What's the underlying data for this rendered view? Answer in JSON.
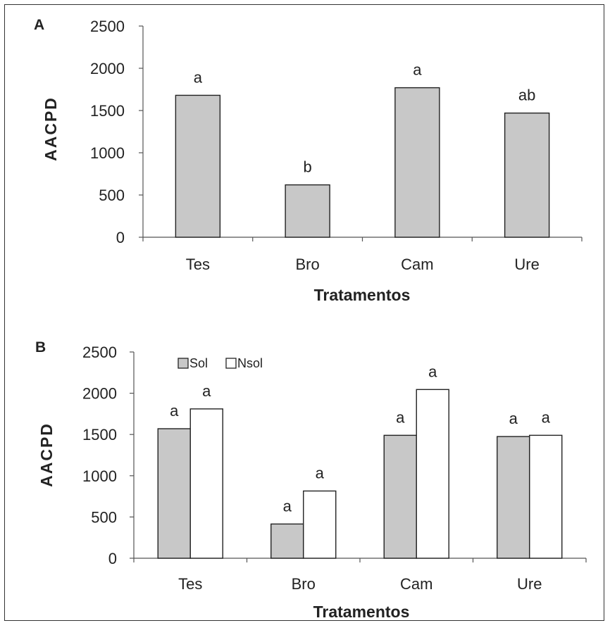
{
  "colors": {
    "sol": "#c8c8c8",
    "nsol": "#ffffff",
    "stroke": "#222222"
  },
  "chart_data": [
    {
      "type": "bar",
      "panel": "A",
      "xlabel": "Tratamentos",
      "ylabel": "AACPD",
      "ylim": [
        0,
        2500
      ],
      "yticks": [
        0,
        500,
        1000,
        1500,
        2000,
        2500
      ],
      "categories": [
        "Tes",
        "Bro",
        "Cam",
        "Ure"
      ],
      "series": [
        {
          "values": [
            1680,
            620,
            1770,
            1470
          ],
          "labels": [
            "a",
            "b",
            "a",
            "ab"
          ]
        }
      ],
      "grid": false
    },
    {
      "type": "bar",
      "panel": "B",
      "xlabel": "Tratamentos",
      "ylabel": "AACPD",
      "ylim": [
        0,
        2500
      ],
      "yticks": [
        0,
        500,
        1000,
        1500,
        2000,
        2500
      ],
      "categories": [
        "Tes",
        "Bro",
        "Cam",
        "Ure"
      ],
      "series": [
        {
          "name": "Sol",
          "values": [
            1570,
            415,
            1490,
            1475
          ],
          "labels": [
            "a",
            "a",
            "a",
            "a"
          ]
        },
        {
          "name": "Nsol",
          "values": [
            1810,
            815,
            2045,
            1490
          ],
          "labels": [
            "a",
            "a",
            "a",
            "a"
          ]
        }
      ],
      "legend_position": "top-left",
      "grid": false
    }
  ]
}
